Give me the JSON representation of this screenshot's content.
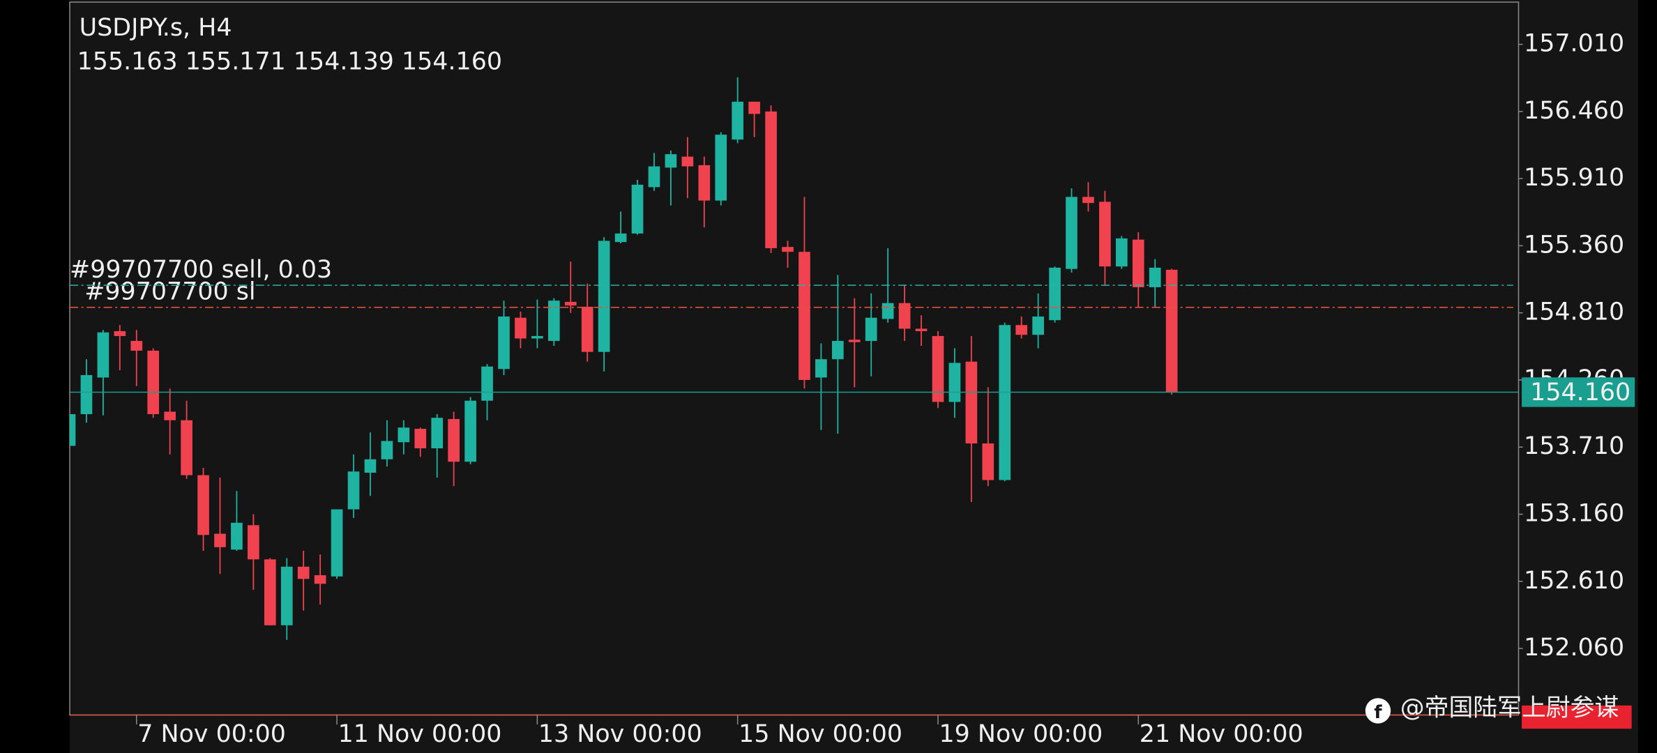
{
  "chart_data": {
    "type": "candlestick",
    "title": "USDJPY.s, H4",
    "ohlc_text": "155.163 155.171 154.139 154.160",
    "up_color": "#1fb3a2",
    "down_color": "#f0434f",
    "open": [
      153.72,
      153.98,
      154.28,
      154.66,
      154.58,
      154.5,
      154.0,
      153.93,
      153.48,
      153.0,
      152.87,
      153.07,
      152.79,
      152.25,
      152.73,
      152.66,
      152.65,
      153.2,
      153.5,
      153.61,
      153.75,
      153.86,
      153.7,
      153.94,
      153.59,
      154.09,
      154.35,
      154.77,
      154.6,
      154.58,
      154.9,
      154.86,
      154.49,
      155.39,
      155.46,
      155.84,
      156.0,
      156.09,
      156.02,
      155.73,
      156.23,
      156.54,
      156.46,
      155.35,
      155.31,
      154.28,
      154.43,
      154.59,
      154.58,
      154.76,
      154.89,
      154.68,
      154.62,
      154.08,
      154.41,
      153.74,
      153.44,
      154.71,
      154.63,
      154.75,
      155.17,
      155.76,
      155.72,
      155.19,
      155.41,
      155.02,
      155.163
    ],
    "high": [
      153.98,
      154.43,
      154.67,
      154.71,
      154.67,
      154.52,
      154.19,
      154.09,
      153.54,
      153.46,
      153.35,
      153.16,
      152.8,
      152.8,
      152.86,
      152.83,
      153.2,
      153.65,
      153.83,
      153.93,
      153.93,
      153.87,
      153.98,
      154.0,
      154.12,
      154.39,
      154.91,
      154.82,
      154.92,
      154.93,
      155.23,
      155.05,
      155.43,
      155.64,
      155.9,
      156.12,
      156.14,
      156.25,
      156.09,
      156.29,
      156.74,
      156.54,
      156.51,
      155.4,
      155.76,
      154.56,
      155.12,
      154.93,
      154.97,
      155.34,
      155.04,
      154.79,
      154.66,
      154.52,
      154.62,
      154.2,
      154.73,
      154.78,
      154.97,
      155.19,
      155.83,
      155.88,
      155.81,
      155.44,
      155.47,
      155.25,
      155.171
    ],
    "low": [
      153.72,
      153.91,
      153.97,
      154.34,
      154.21,
      153.95,
      153.65,
      153.45,
      152.86,
      152.67,
      152.86,
      152.54,
      152.25,
      152.13,
      152.37,
      152.42,
      152.63,
      153.13,
      153.31,
      153.55,
      153.65,
      153.63,
      153.46,
      153.39,
      153.57,
      153.93,
      154.3,
      154.52,
      154.52,
      154.54,
      154.81,
      154.41,
      154.33,
      155.38,
      155.45,
      155.81,
      155.69,
      155.75,
      155.51,
      155.69,
      156.2,
      156.25,
      155.3,
      155.18,
      154.19,
      153.85,
      153.82,
      154.2,
      154.29,
      154.73,
      154.58,
      154.54,
      154.03,
      153.95,
      153.26,
      153.39,
      153.43,
      154.6,
      154.52,
      154.73,
      155.14,
      155.64,
      155.04,
      155.17,
      154.86,
      154.86,
      154.139
    ],
    "close": [
      153.98,
      154.3,
      154.65,
      154.62,
      154.5,
      153.98,
      153.93,
      153.48,
      152.99,
      152.89,
      153.09,
      152.79,
      152.25,
      152.73,
      152.63,
      152.59,
      153.2,
      153.51,
      153.61,
      153.76,
      153.87,
      153.7,
      153.95,
      153.59,
      154.09,
      154.37,
      154.78,
      154.6,
      154.62,
      154.91,
      154.87,
      154.49,
      155.4,
      155.46,
      155.86,
      156.01,
      156.11,
      156.01,
      155.73,
      156.27,
      156.54,
      156.44,
      155.34,
      155.31,
      154.26,
      154.43,
      154.58,
      154.57,
      154.77,
      154.89,
      154.68,
      154.66,
      154.08,
      154.4,
      153.74,
      153.44,
      154.71,
      154.63,
      154.78,
      155.18,
      155.76,
      155.71,
      155.19,
      155.42,
      155.02,
      155.18,
      154.16
    ],
    "xticks": [
      {
        "value": 4,
        "label": "7 Nov 00:00"
      },
      {
        "value": 16,
        "label": "11 Nov 00:00"
      },
      {
        "value": 28,
        "label": "13 Nov 00:00"
      },
      {
        "value": 40,
        "label": "15 Nov 00:00"
      },
      {
        "value": 52,
        "label": "19 Nov 00:00"
      },
      {
        "value": 64,
        "label": "21 Nov 00:00"
      }
    ],
    "ylim": [
      151.515,
      157.356
    ],
    "yticks": [
      {
        "value": 157.01,
        "label": "157.010"
      },
      {
        "value": 156.46,
        "label": "156.460"
      },
      {
        "value": 155.91,
        "label": "155.910"
      },
      {
        "value": 155.36,
        "label": "155.360"
      },
      {
        "value": 154.81,
        "label": "154.810"
      },
      {
        "value": 154.26,
        "label": "154.260"
      },
      {
        "value": 153.71,
        "label": "153.710"
      },
      {
        "value": 153.16,
        "label": "153.160"
      },
      {
        "value": 152.61,
        "label": "152.610"
      },
      {
        "value": 152.06,
        "label": "152.060"
      }
    ],
    "current_price": {
      "value": 154.16,
      "label": "154.160",
      "color": "#1a9e8f"
    },
    "orders": [
      {
        "label": "#99707700 sell, 0.03",
        "value": 155.036,
        "color": "#2fb0a8"
      },
      {
        "label": "#99707700 sl",
        "value": 154.855,
        "color": "#e0533a"
      }
    ],
    "watermark": "@帝国陆军上尉参谋"
  }
}
